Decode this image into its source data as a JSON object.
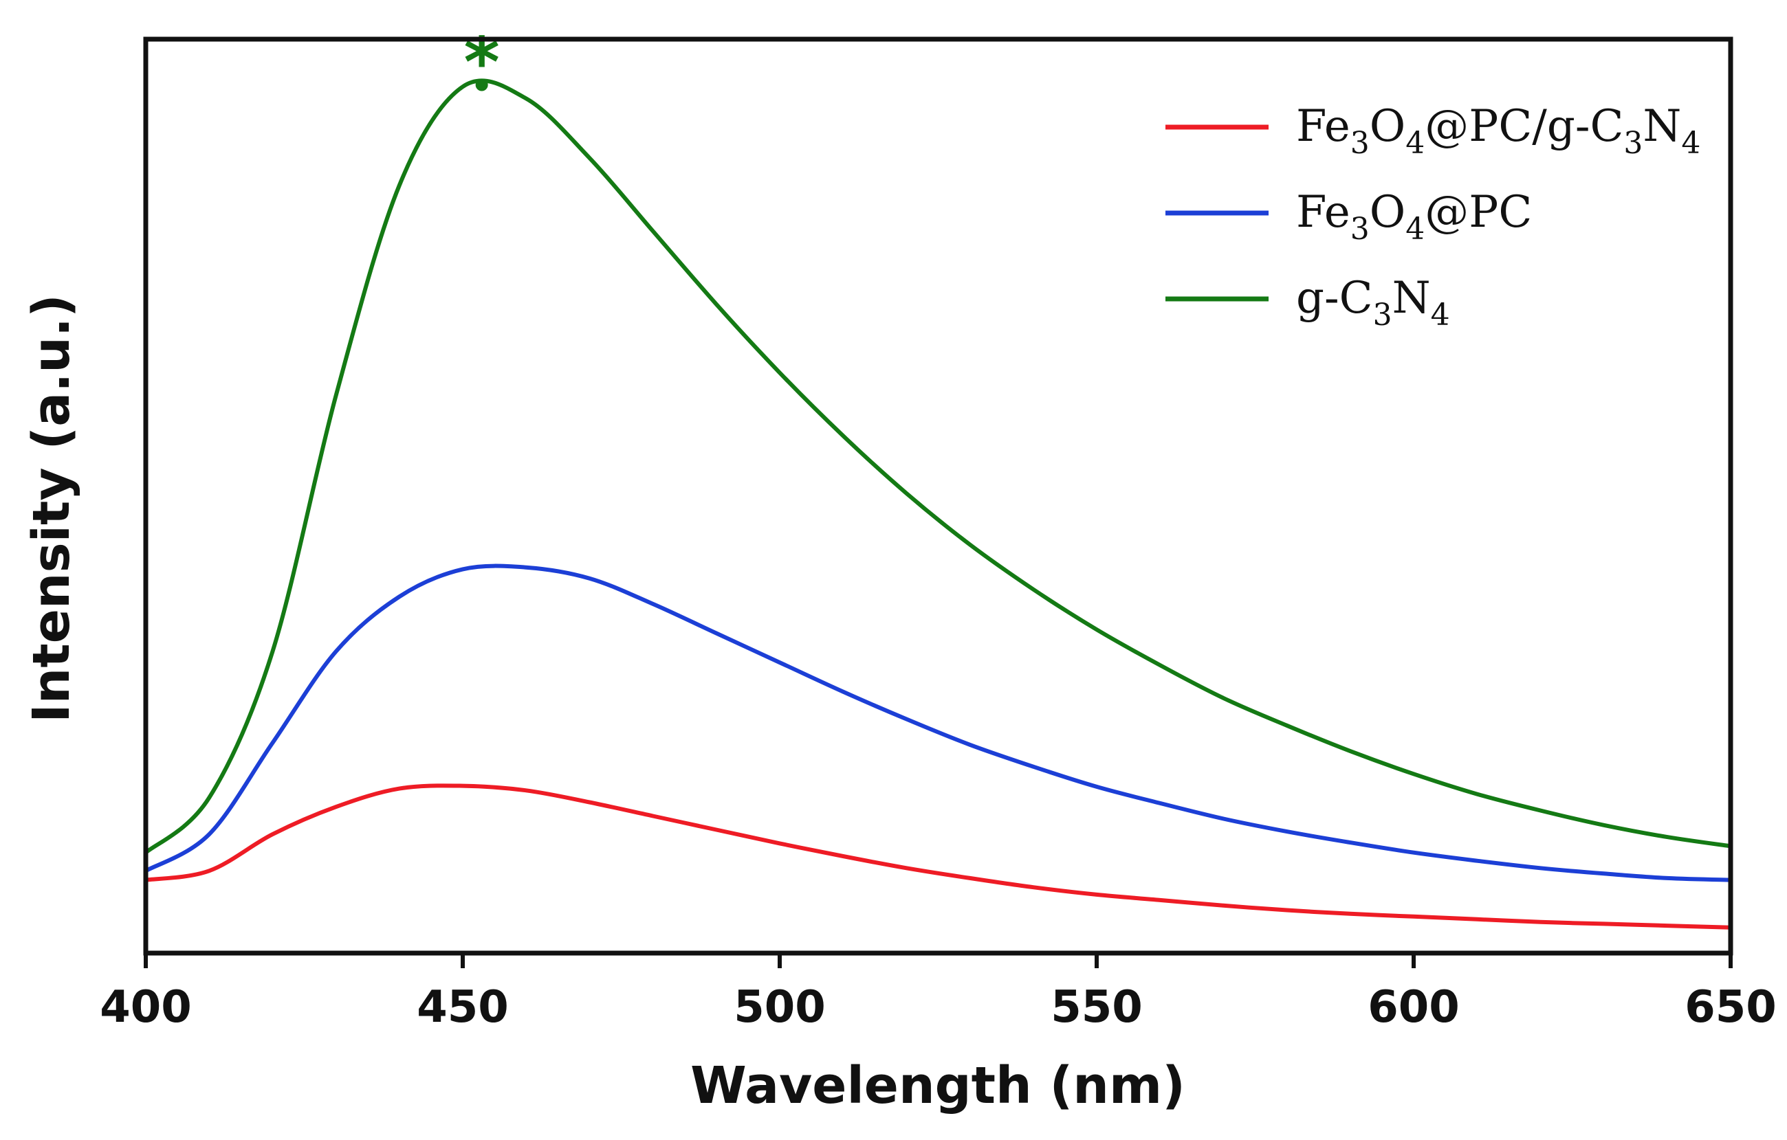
{
  "chart_data": {
    "type": "line",
    "title": "",
    "xlabel": "Wavelength (nm)",
    "ylabel": "Intensity (a.u.)",
    "xlim": [
      400,
      650
    ],
    "ylim": [
      0,
      1
    ],
    "grid": false,
    "x_ticks": [
      400,
      450,
      500,
      550,
      600,
      650
    ],
    "x_tick_labels": [
      "400",
      "450",
      "500",
      "550",
      "600",
      "650"
    ],
    "y_ticks": [],
    "legend_position": "top-right",
    "x": [
      400,
      410,
      420,
      430,
      440,
      450,
      460,
      470,
      480,
      490,
      500,
      510,
      520,
      530,
      540,
      550,
      560,
      570,
      580,
      590,
      600,
      610,
      620,
      630,
      640,
      650
    ],
    "series": [
      {
        "name": "Fe3O4@PC/g-C3N4",
        "legend_parts": [
          {
            "text": "Fe",
            "sub": false
          },
          {
            "text": "3",
            "sub": true
          },
          {
            "text": "O",
            "sub": false
          },
          {
            "text": "4",
            "sub": true
          },
          {
            "text": "@PC/g-C",
            "sub": false
          },
          {
            "text": "3",
            "sub": true
          },
          {
            "text": "N",
            "sub": false
          },
          {
            "text": "4",
            "sub": true
          }
        ],
        "color": "#ee1c25",
        "values": [
          0.08,
          0.09,
          0.13,
          0.16,
          0.18,
          0.183,
          0.178,
          0.165,
          0.15,
          0.135,
          0.12,
          0.106,
          0.093,
          0.082,
          0.072,
          0.064,
          0.058,
          0.052,
          0.047,
          0.043,
          0.04,
          0.037,
          0.034,
          0.032,
          0.03,
          0.028
        ]
      },
      {
        "name": "Fe3O4@PC",
        "legend_parts": [
          {
            "text": "Fe",
            "sub": false
          },
          {
            "text": "3",
            "sub": true
          },
          {
            "text": "O",
            "sub": false
          },
          {
            "text": "4",
            "sub": true
          },
          {
            "text": "@PC",
            "sub": false
          }
        ],
        "color": "#1c3fd6",
        "values": [
          0.09,
          0.13,
          0.23,
          0.33,
          0.39,
          0.42,
          0.422,
          0.41,
          0.382,
          0.35,
          0.318,
          0.286,
          0.256,
          0.228,
          0.204,
          0.182,
          0.164,
          0.147,
          0.133,
          0.121,
          0.11,
          0.101,
          0.093,
          0.087,
          0.082,
          0.08
        ]
      },
      {
        "name": "g-C3N4",
        "legend_parts": [
          {
            "text": "g-C",
            "sub": false
          },
          {
            "text": "3",
            "sub": true
          },
          {
            "text": "N",
            "sub": false
          },
          {
            "text": "4",
            "sub": true
          }
        ],
        "color": "#147a14",
        "values": [
          0.11,
          0.17,
          0.33,
          0.61,
          0.84,
          0.948,
          0.935,
          0.87,
          0.79,
          0.71,
          0.635,
          0.566,
          0.503,
          0.447,
          0.398,
          0.354,
          0.315,
          0.279,
          0.249,
          0.221,
          0.196,
          0.174,
          0.156,
          0.14,
          0.127,
          0.117
        ]
      }
    ],
    "annotations": [
      {
        "text": "*",
        "x": 453,
        "y": 0.95,
        "color": "#147a14"
      }
    ]
  }
}
